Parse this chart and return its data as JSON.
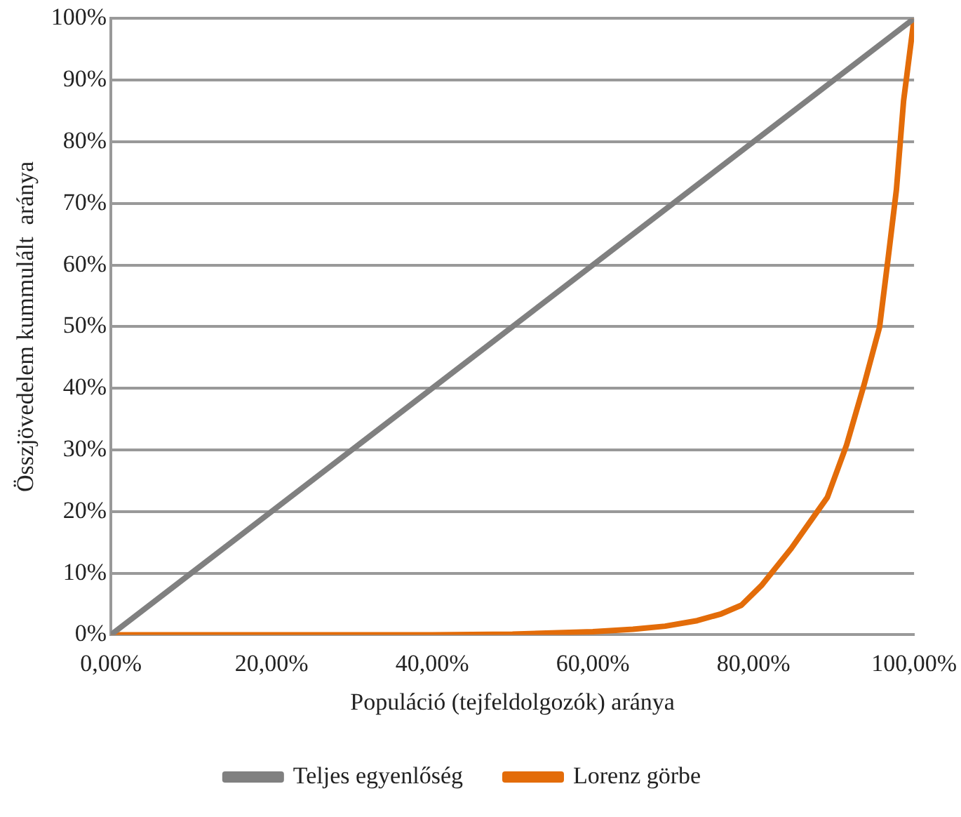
{
  "chart_data": {
    "type": "line",
    "xlabel": "Populáció (tejfeldolgozók) aránya",
    "ylabel": "Összjövedelem kummulált  aránya",
    "xlim": [
      0,
      100
    ],
    "xticks": [
      {
        "value": 0,
        "label": "0,00%"
      },
      {
        "value": 20,
        "label": "20,00%"
      },
      {
        "value": 40,
        "label": "40,00%"
      },
      {
        "value": 60,
        "label": "60,00%"
      },
      {
        "value": 80,
        "label": "80,00%"
      },
      {
        "value": 100,
        "label": "100,00%"
      }
    ],
    "ylim": [
      0,
      100
    ],
    "yticks": [
      {
        "value": 0,
        "label": "0%"
      },
      {
        "value": 10,
        "label": "10%"
      },
      {
        "value": 20,
        "label": "20%"
      },
      {
        "value": 30,
        "label": "30%"
      },
      {
        "value": 40,
        "label": "40%"
      },
      {
        "value": 50,
        "label": "50%"
      },
      {
        "value": 60,
        "label": "60%"
      },
      {
        "value": 70,
        "label": "70%"
      },
      {
        "value": 80,
        "label": "80%"
      },
      {
        "value": 90,
        "label": "90%"
      },
      {
        "value": 100,
        "label": "100%"
      }
    ],
    "grid": "y",
    "legend": "bottom",
    "marker": "none",
    "line_style": "solid",
    "series": [
      {
        "name": "Teljes egyenlőség",
        "color": "#808080",
        "x": [
          0,
          100
        ],
        "values": [
          0,
          100
        ]
      },
      {
        "name": "Lorenz görbe",
        "color": "#e36c09",
        "x": [
          0,
          40,
          50,
          60,
          65,
          69,
          73,
          76,
          78.5,
          81,
          84.7,
          89.2,
          91.6,
          93.8,
          95.7,
          96.8,
          97.8,
          98.7,
          100
        ],
        "values": [
          0,
          0,
          0.1,
          0.5,
          0.9,
          1.4,
          2.3,
          3.4,
          4.8,
          8,
          14,
          22.3,
          30.8,
          40.7,
          49.9,
          61.4,
          72.2,
          86.7,
          100
        ]
      }
    ]
  }
}
